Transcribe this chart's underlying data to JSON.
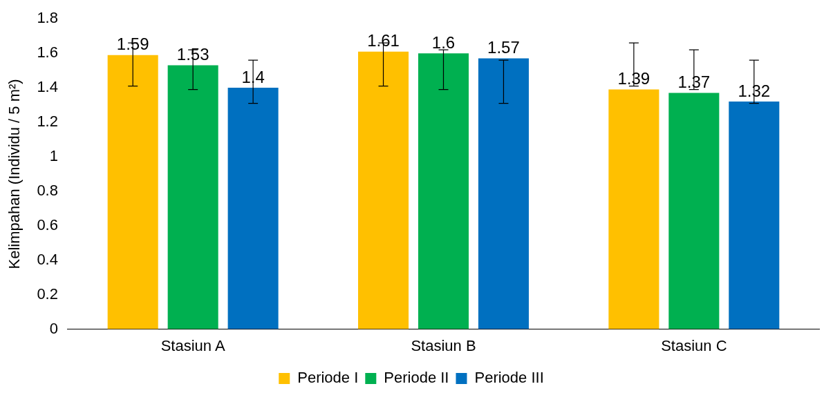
{
  "chart_data": {
    "type": "bar",
    "ylabel": "Kelimpahan (Individu / 5 m²)",
    "categories": [
      "Stasiun A",
      "Stasiun B",
      "Stasiun C"
    ],
    "series": [
      {
        "name": "Periode I",
        "color": "#ffc000",
        "values": [
          1.59,
          1.61,
          1.39
        ],
        "errors": [
          [
            1.41,
            1.66
          ],
          [
            1.41,
            1.66
          ],
          [
            1.41,
            1.66
          ]
        ]
      },
      {
        "name": "Periode II",
        "color": "#00b050",
        "values": [
          1.53,
          1.6,
          1.37
        ],
        "errors": [
          [
            1.39,
            1.62
          ],
          [
            1.39,
            1.62
          ],
          [
            1.39,
            1.62
          ]
        ]
      },
      {
        "name": "Periode III",
        "color": "#0070c0",
        "values": [
          1.4,
          1.57,
          1.32
        ],
        "errors": [
          [
            1.31,
            1.56
          ],
          [
            1.31,
            1.56
          ],
          [
            1.31,
            1.56
          ]
        ]
      }
    ],
    "ylim": [
      0,
      1.8
    ],
    "yticks": [
      0,
      0.2,
      0.4,
      0.6,
      0.8,
      1,
      1.2,
      1.4,
      1.6,
      1.8
    ],
    "grid": false,
    "legend": "bottom",
    "data_labels": true
  }
}
